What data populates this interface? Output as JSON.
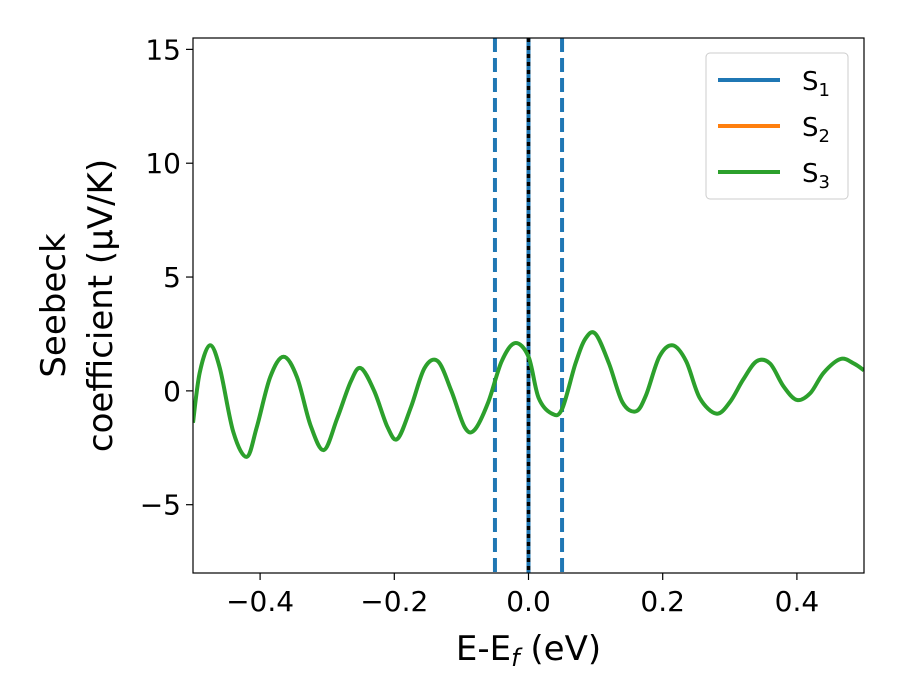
{
  "chart_data": {
    "type": "line",
    "xlabel": "E-E",
    "xlabel_sub": "f",
    "xlabel_suffix": " (eV)",
    "ylabel_line1": "Seebeck",
    "ylabel_line2": "coefficient  (μV/K)",
    "xlim": [
      -0.5,
      0.5
    ],
    "ylim": [
      -8,
      15.5
    ],
    "xticks": [
      -0.4,
      -0.2,
      0.0,
      0.2,
      0.4
    ],
    "xtick_labels": [
      "−0.4",
      "−0.2",
      "0.0",
      "0.2",
      "0.4"
    ],
    "yticks": [
      -5,
      0,
      5,
      10,
      15
    ],
    "ytick_labels": [
      "−5",
      "0",
      "5",
      "10",
      "15"
    ],
    "grid": false,
    "legend_placement": "top-right",
    "series": [
      {
        "name": "S",
        "sub": "1",
        "color": "#1f77b4"
      },
      {
        "name": "S",
        "sub": "2",
        "color": "#ff7f0e"
      },
      {
        "name": "S",
        "sub": "3",
        "color": "#2ca02c",
        "x": [
          -0.5,
          -0.49,
          -0.475,
          -0.46,
          -0.44,
          -0.42,
          -0.405,
          -0.385,
          -0.365,
          -0.345,
          -0.325,
          -0.305,
          -0.285,
          -0.265,
          -0.25,
          -0.23,
          -0.21,
          -0.195,
          -0.175,
          -0.155,
          -0.135,
          -0.115,
          -0.095,
          -0.08,
          -0.06,
          -0.04,
          -0.02,
          0.0,
          0.015,
          0.035,
          0.05,
          0.07,
          0.085,
          0.1,
          0.12,
          0.14,
          0.16,
          0.175,
          0.195,
          0.215,
          0.235,
          0.255,
          0.28,
          0.3,
          0.32,
          0.34,
          0.36,
          0.38,
          0.4,
          0.42,
          0.44,
          0.465,
          0.485,
          0.5
        ],
        "y": [
          -1.4,
          0.8,
          2.0,
          1.0,
          -1.8,
          -2.9,
          -1.6,
          0.6,
          1.5,
          0.6,
          -1.5,
          -2.6,
          -1.2,
          0.4,
          1.0,
          0.0,
          -1.6,
          -2.1,
          -0.7,
          1.0,
          1.3,
          0.0,
          -1.6,
          -1.7,
          -0.5,
          1.3,
          2.1,
          1.5,
          -0.3,
          -1.0,
          -0.8,
          1.2,
          2.3,
          2.5,
          1.2,
          -0.5,
          -0.9,
          -0.2,
          1.5,
          2.0,
          1.3,
          -0.3,
          -1.0,
          -0.5,
          0.5,
          1.3,
          1.2,
          0.2,
          -0.4,
          -0.1,
          0.8,
          1.4,
          1.2,
          0.9
        ]
      }
    ],
    "vlines": [
      {
        "x": -0.05,
        "style": "dashed",
        "color": "#1f77b4"
      },
      {
        "x": 0.05,
        "style": "dashed",
        "color": "#1f77b4"
      },
      {
        "x": 0.0,
        "style": "solid",
        "color": "#1f77b4"
      },
      {
        "x": 0.0,
        "style": "dotted",
        "color": "#000000"
      }
    ]
  }
}
